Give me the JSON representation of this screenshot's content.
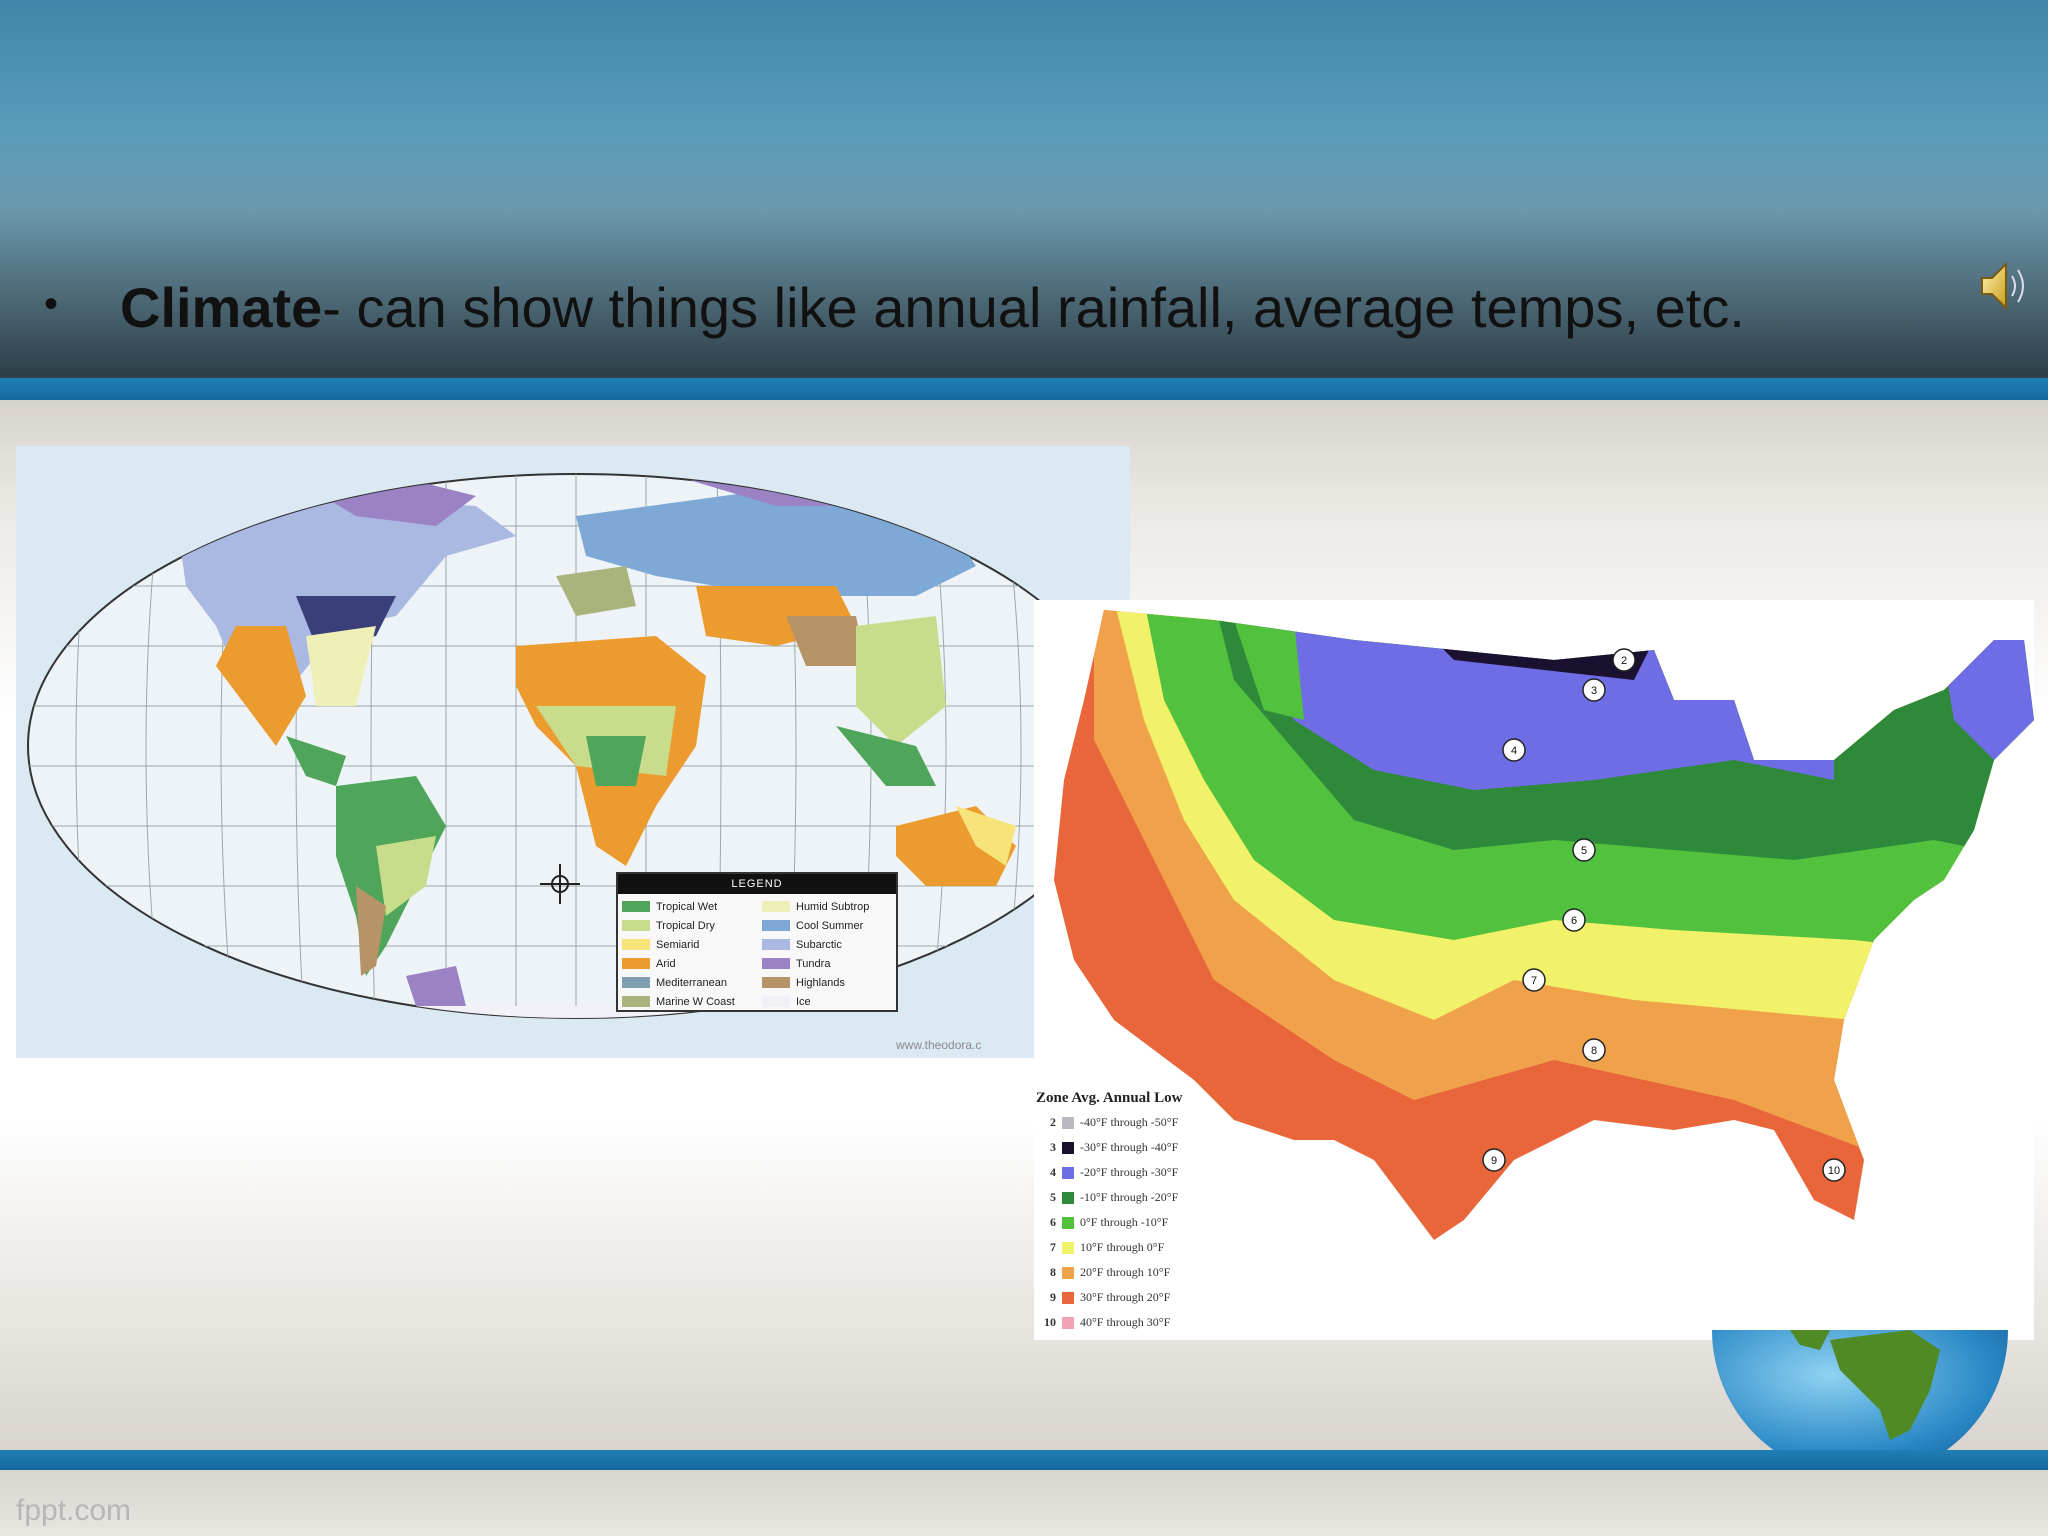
{
  "slide": {
    "bullet_char": "•",
    "heading_bold": "Climate",
    "heading_rest": "- can show things like annual rainfall, average temps, etc.",
    "footer": "fppt.com"
  },
  "icons": {
    "audio": "speaker-icon",
    "globe": "globe-image"
  },
  "colors": {
    "header_top": "#3f86a9",
    "stripe": "#1668a0"
  },
  "world_map": {
    "legend_title": "LEGEND",
    "legend": [
      {
        "label": "Tropical Wet",
        "color": "#4fa65a"
      },
      {
        "label": "Humid Subtrop",
        "color": "#eef0b8"
      },
      {
        "label": "Tropical Dry",
        "color": "#c9dc8b"
      },
      {
        "label": "Cool Summer",
        "color": "#7ea9d6"
      },
      {
        "label": "Semiarid",
        "color": "#f6e47a"
      },
      {
        "label": "Subarctic",
        "color": "#a9b9e2"
      },
      {
        "label": "Arid",
        "color": "#ec9b2f"
      },
      {
        "label": "Tundra",
        "color": "#9b82c4"
      },
      {
        "label": "Mediterranean",
        "color": "#7f9fb0"
      },
      {
        "label": "Highlands",
        "color": "#b79468"
      },
      {
        "label": "Marine W Coast",
        "color": "#a9b47c"
      },
      {
        "label": "Ice",
        "color": "#f1f1f7"
      }
    ],
    "source": "www.theodora.c"
  },
  "us_map": {
    "legend_header": "Zone  Avg. Annual Low",
    "zones": [
      {
        "zone": "2",
        "range": "-40°F through -50°F",
        "color": "#b9b9bf"
      },
      {
        "zone": "3",
        "range": "-30°F through -40°F",
        "color": "#1a1030"
      },
      {
        "zone": "4",
        "range": "-20°F through -30°F",
        "color": "#6f6de6"
      },
      {
        "zone": "5",
        "range": "-10°F through -20°F",
        "color": "#2e8a3a"
      },
      {
        "zone": "6",
        "range": "0°F through -10°F",
        "color": "#52c13e"
      },
      {
        "zone": "7",
        "range": "10°F through 0°F",
        "color": "#f2f26a"
      },
      {
        "zone": "8",
        "range": "20°F through 10°F",
        "color": "#f0a24a"
      },
      {
        "zone": "9",
        "range": "30°F through 20°F",
        "color": "#e8663a"
      },
      {
        "zone": "10",
        "range": "40°F through 30°F",
        "color": "#f2a0b4"
      }
    ],
    "map_labels": [
      "2",
      "3",
      "4",
      "5",
      "6",
      "7",
      "8",
      "9",
      "10"
    ]
  }
}
